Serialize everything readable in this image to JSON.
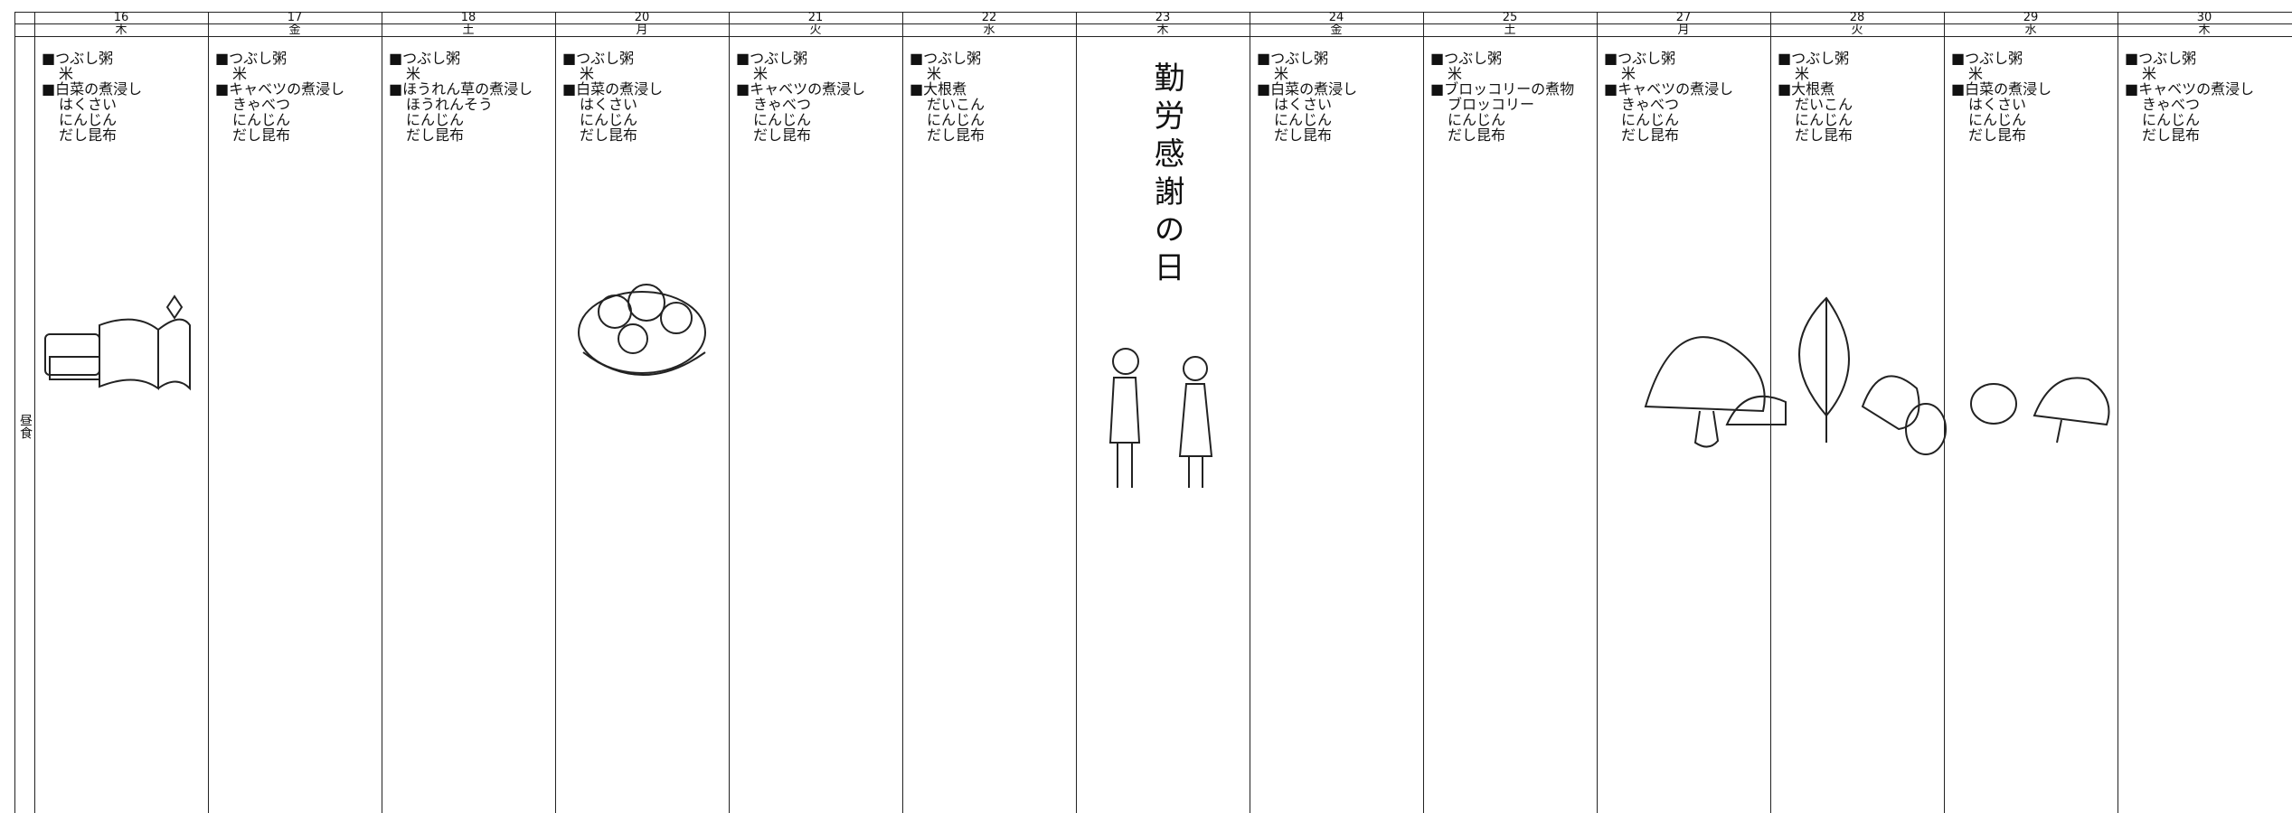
{
  "row_label": "昼食",
  "columns": [
    {
      "date": "16",
      "weekday": "木",
      "items": [
        "■つぶし粥",
        "米",
        "■白菜の煮浸し",
        "はくさい",
        "にんじん",
        "だし昆布"
      ]
    },
    {
      "date": "17",
      "weekday": "金",
      "items": [
        "■つぶし粥",
        "米",
        "■キャベツの煮浸し",
        "きゃべつ",
        "にんじん",
        "だし昆布"
      ]
    },
    {
      "date": "18",
      "weekday": "土",
      "items": [
        "■つぶし粥",
        "米",
        "■ほうれん草の煮浸し",
        "ほうれんそう",
        "にんじん",
        "だし昆布"
      ]
    },
    {
      "date": "20",
      "weekday": "月",
      "items": [
        "■つぶし粥",
        "米",
        "■白菜の煮浸し",
        "はくさい",
        "にんじん",
        "だし昆布"
      ]
    },
    {
      "date": "21",
      "weekday": "火",
      "items": [
        "■つぶし粥",
        "米",
        "■キャベツの煮浸し",
        "きゃべつ",
        "にんじん",
        "だし昆布"
      ]
    },
    {
      "date": "22",
      "weekday": "水",
      "items": [
        "■つぶし粥",
        "米",
        "■大根煮",
        "だいこん",
        "にんじん",
        "だし昆布"
      ]
    },
    {
      "date": "23",
      "weekday": "木",
      "holiday": "勤労感謝の日"
    },
    {
      "date": "24",
      "weekday": "金",
      "items": [
        "■つぶし粥",
        "米",
        "■白菜の煮浸し",
        "はくさい",
        "にんじん",
        "だし昆布"
      ]
    },
    {
      "date": "25",
      "weekday": "土",
      "items": [
        "■つぶし粥",
        "米",
        "■ブロッコリーの煮物",
        "ブロッコリー",
        "にんじん",
        "だし昆布"
      ]
    },
    {
      "date": "27",
      "weekday": "月",
      "items": [
        "■つぶし粥",
        "米",
        "■キャベツの煮浸し",
        "きゃべつ",
        "にんじん",
        "だし昆布"
      ]
    },
    {
      "date": "28",
      "weekday": "火",
      "items": [
        "■つぶし粥",
        "米",
        "■大根煮",
        "だいこん",
        "にんじん",
        "だし昆布"
      ]
    },
    {
      "date": "29",
      "weekday": "水",
      "items": [
        "■つぶし粥",
        "米",
        "■白菜の煮浸し",
        "はくさい",
        "にんじん",
        "だし昆布"
      ]
    },
    {
      "date": "30",
      "weekday": "木",
      "items": [
        "■つぶし粥",
        "米",
        "■キャベツの煮浸し",
        "きゃべつ",
        "にんじん",
        "だし昆布"
      ]
    }
  ]
}
